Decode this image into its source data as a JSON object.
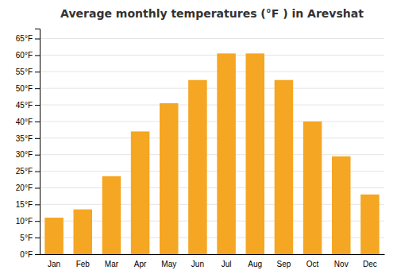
{
  "chart_data": {
    "type": "bar",
    "title": "Average monthly temperatures (°F ) in Arevshat",
    "categories": [
      "Jan",
      "Feb",
      "Mar",
      "Apr",
      "May",
      "Jun",
      "Jul",
      "Aug",
      "Sep",
      "Oct",
      "Nov",
      "Dec"
    ],
    "values": [
      11,
      13.5,
      23.5,
      37,
      45.5,
      52.5,
      60.5,
      60.5,
      52.5,
      40,
      29.5,
      18
    ],
    "color": "#F5A623",
    "ylim": [
      0,
      68
    ],
    "yticks": [
      {
        "value": 0,
        "label": "0°F"
      },
      {
        "value": 5,
        "label": "5°F"
      },
      {
        "value": 10,
        "label": "10°F"
      },
      {
        "value": 15,
        "label": "15°F"
      },
      {
        "value": 20,
        "label": "20°F"
      },
      {
        "value": 25,
        "label": "25°F"
      },
      {
        "value": 30,
        "label": "30°F"
      },
      {
        "value": 35,
        "label": "35°F"
      },
      {
        "value": 40,
        "label": "40°F"
      },
      {
        "value": 45,
        "label": "45°F"
      },
      {
        "value": 50,
        "label": "50°F"
      },
      {
        "value": 55,
        "label": "55°F"
      },
      {
        "value": 60,
        "label": "60°F"
      },
      {
        "value": 65,
        "label": "65°F"
      }
    ],
    "grid": true
  }
}
